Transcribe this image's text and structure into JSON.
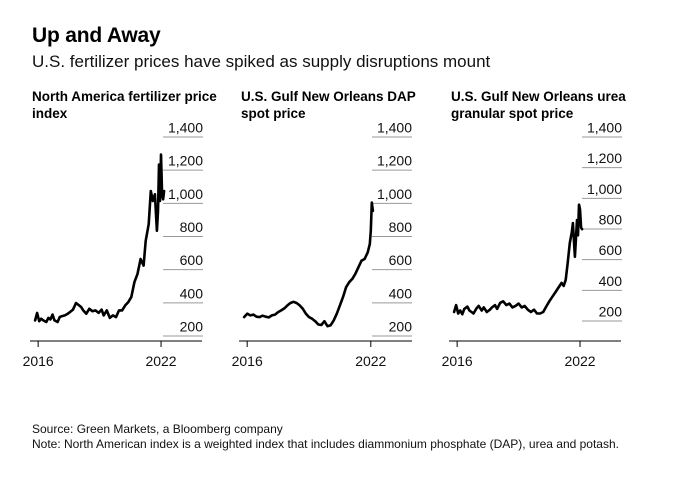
{
  "title": "Up and Away",
  "subtitle": "U.S. fertilizer prices have spiked as supply disruptions mount",
  "source": "Source: Green Markets, a Bloomberg company",
  "note": "Note: North American index is a weighted index that includes diammonium phosphate (DAP), urea and potash.",
  "chart_data": [
    {
      "type": "line",
      "title": "North America fertilizer price index",
      "ylim": [
        200,
        1400
      ],
      "yticks": [
        "200",
        "400",
        "600",
        "800",
        "1,000",
        "1,200",
        "1,400"
      ],
      "ytick_values": [
        200,
        400,
        600,
        800,
        1000,
        1200,
        1400
      ],
      "xticks": [
        "2016",
        "2022"
      ],
      "xtick_values": [
        2016,
        2022
      ],
      "xlim": [
        2015.7,
        2024.0
      ],
      "line_color": "#000000",
      "series": [
        {
          "x": [
            2015.85,
            2015.95,
            2016.05,
            2016.15,
            2016.25,
            2016.4,
            2016.5,
            2016.6,
            2016.7,
            2016.8,
            2016.95,
            2017.05,
            2017.15,
            2017.3,
            2017.45,
            2017.55,
            2017.7,
            2017.85,
            2018.0,
            2018.1,
            2018.2,
            2018.35,
            2018.5,
            2018.65,
            2018.8,
            2018.95,
            2019.1,
            2019.2,
            2019.35,
            2019.5,
            2019.65,
            2019.8,
            2019.95,
            2020.1,
            2020.25,
            2020.4,
            2020.55,
            2020.7,
            2020.85,
            2021.0,
            2021.15,
            2021.25,
            2021.4,
            2021.5,
            2021.6,
            2021.7,
            2021.8,
            2021.85,
            2021.9,
            2021.95,
            2022.0,
            2022.05,
            2022.1,
            2022.15
          ],
          "values": [
            240,
            285,
            235,
            250,
            240,
            230,
            255,
            245,
            275,
            240,
            230,
            260,
            265,
            270,
            280,
            290,
            305,
            345,
            330,
            320,
            300,
            280,
            310,
            295,
            300,
            285,
            305,
            270,
            300,
            255,
            270,
            260,
            300,
            300,
            330,
            350,
            380,
            470,
            520,
            610,
            570,
            720,
            820,
            1020,
            960,
            1000,
            780,
            900,
            1180,
            960,
            1240,
            1000,
            970,
            1020
          ]
        }
      ]
    },
    {
      "type": "line",
      "title": "U.S. Gulf New Orleans DAP spot price",
      "ylim": [
        200,
        1400
      ],
      "yticks": [
        "200",
        "400",
        "600",
        "800",
        "1,000",
        "1,200",
        "1,400"
      ],
      "ytick_values": [
        200,
        400,
        600,
        800,
        1000,
        1200,
        1400
      ],
      "xticks": [
        "2016",
        "2022"
      ],
      "xtick_values": [
        2016,
        2022
      ],
      "xlim": [
        2015.7,
        2024.0
      ],
      "line_color": "#000000",
      "series": [
        {
          "x": [
            2015.85,
            2016.0,
            2016.15,
            2016.3,
            2016.45,
            2016.6,
            2016.75,
            2016.9,
            2017.05,
            2017.2,
            2017.35,
            2017.5,
            2017.65,
            2017.8,
            2017.95,
            2018.1,
            2018.25,
            2018.4,
            2018.55,
            2018.7,
            2018.85,
            2019.0,
            2019.15,
            2019.3,
            2019.45,
            2019.6,
            2019.75,
            2019.9,
            2020.05,
            2020.2,
            2020.35,
            2020.5,
            2020.65,
            2020.8,
            2020.95,
            2021.1,
            2021.25,
            2021.4,
            2021.55,
            2021.7,
            2021.85,
            2021.95,
            2022.0,
            2022.05,
            2022.1
          ],
          "values": [
            260,
            280,
            270,
            275,
            262,
            260,
            268,
            262,
            258,
            270,
            275,
            290,
            300,
            312,
            330,
            345,
            352,
            345,
            330,
            310,
            280,
            260,
            250,
            235,
            215,
            212,
            235,
            205,
            210,
            240,
            280,
            330,
            380,
            440,
            470,
            490,
            520,
            560,
            600,
            610,
            650,
            700,
            780,
            950,
            900
          ]
        }
      ]
    },
    {
      "type": "line",
      "title": "U.S. Gulf New Orleans urea granular spot price",
      "ylim": [
        100,
        1400
      ],
      "yticks": [
        "200",
        "400",
        "600",
        "800",
        "1,000",
        "1,200",
        "1,400"
      ],
      "ytick_values": [
        200,
        400,
        600,
        800,
        1000,
        1200,
        1400
      ],
      "xticks": [
        "2016",
        "2022"
      ],
      "xtick_values": [
        2016,
        2022
      ],
      "xlim": [
        2015.7,
        2024.0
      ],
      "line_color": "#000000",
      "series": [
        {
          "x": [
            2015.85,
            2015.95,
            2016.05,
            2016.15,
            2016.25,
            2016.35,
            2016.5,
            2016.6,
            2016.7,
            2016.8,
            2016.95,
            2017.05,
            2017.2,
            2017.3,
            2017.45,
            2017.6,
            2017.7,
            2017.85,
            2017.95,
            2018.1,
            2018.25,
            2018.4,
            2018.55,
            2018.7,
            2018.85,
            2019.0,
            2019.15,
            2019.3,
            2019.45,
            2019.6,
            2019.75,
            2019.9,
            2020.05,
            2020.2,
            2020.35,
            2020.5,
            2020.65,
            2020.8,
            2020.95,
            2021.1,
            2021.2,
            2021.3,
            2021.4,
            2021.5,
            2021.6,
            2021.65,
            2021.75,
            2021.85,
            2021.9,
            2021.95,
            2022.0,
            2022.05,
            2022.1
          ],
          "values": [
            200,
            245,
            190,
            210,
            185,
            220,
            235,
            210,
            200,
            190,
            225,
            240,
            210,
            230,
            200,
            215,
            230,
            245,
            220,
            260,
            270,
            245,
            255,
            230,
            240,
            255,
            230,
            240,
            215,
            200,
            215,
            190,
            190,
            200,
            235,
            270,
            300,
            330,
            360,
            390,
            370,
            410,
            520,
            650,
            720,
            780,
            560,
            800,
            700,
            900,
            870,
            750,
            740
          ]
        }
      ]
    }
  ]
}
